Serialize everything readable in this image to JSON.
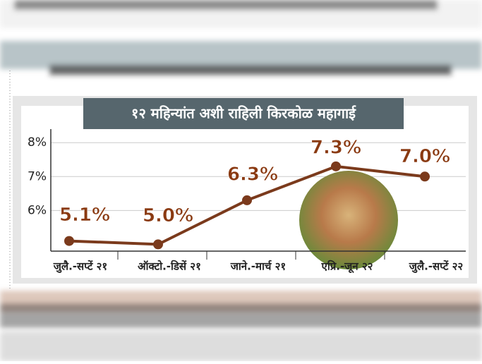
{
  "chart_data": {
    "type": "line",
    "title": "१२ महिन्यांत अशी राहिली किरकोळ महागाई",
    "categories": [
      "जुलै.-सप्टें २१",
      "ऑक्टो.-डिसें २१",
      "जाने.-मार्च २१",
      "एप्रि.-जून २२",
      "जुलै.-सप्टें २२"
    ],
    "series": [
      {
        "color": "#7b3a1c",
        "values": [
          5.1,
          5.0,
          6.3,
          7.3,
          7.0
        ],
        "value_labels": [
          "5.1%",
          "5.0%",
          "6.3%",
          "7.3%",
          "7.0%"
        ]
      }
    ],
    "ylim": [
      4.8,
      8.4
    ],
    "yticks": [
      {
        "value": 6,
        "label": "6%"
      },
      {
        "value": 7,
        "label": "7%"
      },
      {
        "value": 8,
        "label": "8%"
      }
    ],
    "grid": true
  }
}
